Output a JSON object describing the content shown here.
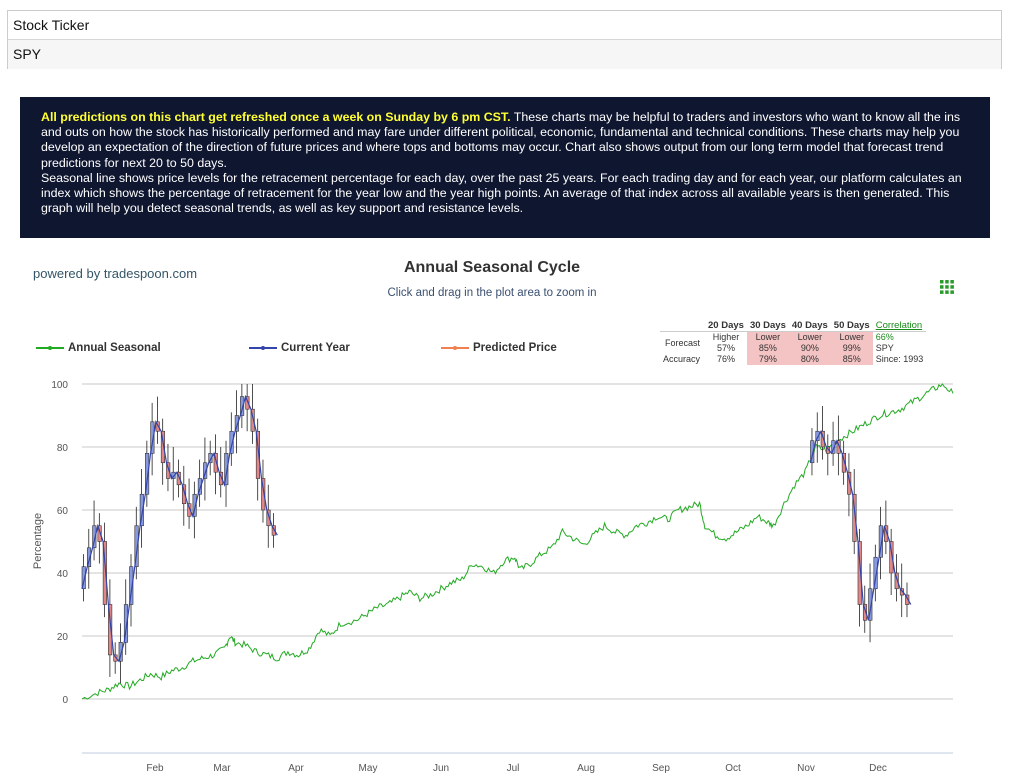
{
  "ticker": {
    "label": "Stock Ticker",
    "value": "SPY"
  },
  "info": {
    "highlight": "All predictions on this chart get refreshed once a week on Sunday by 6 pm CST.",
    "text1": " These charts may be helpful to traders and investors who want to know all the ins and outs on how the stock has historically performed and may fare under different political, economic, fundamental and technical conditions. These charts may help you develop an expectation of the direction of future prices and where tops and bottoms may occur. Chart also shows output from our long term model that forecast trend predictions for next 20 to 50 days.",
    "text2": "Seasonal line shows price levels for the retracement percentage for each day, over the past 25 years. For each trading day and for each year, our platform calculates an index which shows the percentage of retracement for the year low and the year high points. An average of that index across all available years is then generated. This graph will help you detect seasonal trends, as well as key support and resistance levels."
  },
  "powered_by": "powered by tradespoon.com",
  "menu_icon": "hamburger-grid-icon",
  "forecast_table": {
    "headers": [
      "20 Days",
      "30 Days",
      "40 Days",
      "50 Days"
    ],
    "correlation_link": "Correlation",
    "forecast_label": "Forecast",
    "accuracy_label": "Accuracy",
    "directions": [
      "Higher",
      "Lower",
      "Lower",
      "Lower"
    ],
    "forecast_pct": [
      "57%",
      "85%",
      "90%",
      "99%"
    ],
    "accuracy": [
      "76%",
      "79%",
      "80%",
      "85%"
    ],
    "correlation_value": "66%",
    "correlation_symbol": "SPY",
    "since": "Since: 1993"
  },
  "chart_data": {
    "type": "line",
    "title": "Annual Seasonal Cycle",
    "subtitle": "Click and drag in the plot area to zoom in",
    "ylabel": "Percentage",
    "xlabel": "",
    "ylim": [
      0,
      100
    ],
    "yticks": [
      0,
      20,
      40,
      60,
      80,
      100
    ],
    "xticks": [
      "Feb",
      "Mar",
      "Apr",
      "May",
      "Jun",
      "Jul",
      "Aug",
      "Sep",
      "Oct",
      "Nov",
      "Dec"
    ],
    "grid": true,
    "legend_position": "top-left",
    "colors": {
      "seasonal": "#22aa22",
      "current": "#3344aa",
      "predicted": "#f08050",
      "up_candle": "#8899dd",
      "down_candle": "#e08888"
    },
    "series": [
      {
        "name": "Annual Seasonal",
        "points": [
          [
            0,
            0
          ],
          [
            6,
            2
          ],
          [
            10,
            3
          ],
          [
            14,
            5
          ],
          [
            18,
            4
          ],
          [
            22,
            6
          ],
          [
            26,
            8
          ],
          [
            30,
            7
          ],
          [
            34,
            9
          ],
          [
            38,
            10
          ],
          [
            42,
            12
          ],
          [
            46,
            13
          ],
          [
            50,
            14
          ],
          [
            54,
            16
          ],
          [
            56,
            20
          ],
          [
            58,
            18
          ],
          [
            62,
            17
          ],
          [
            66,
            15
          ],
          [
            70,
            14
          ],
          [
            74,
            13
          ],
          [
            78,
            15
          ],
          [
            82,
            14
          ],
          [
            86,
            16
          ],
          [
            90,
            22
          ],
          [
            94,
            20
          ],
          [
            98,
            24
          ],
          [
            104,
            25
          ],
          [
            108,
            27
          ],
          [
            112,
            29
          ],
          [
            116,
            30
          ],
          [
            120,
            32
          ],
          [
            124,
            34
          ],
          [
            128,
            32
          ],
          [
            132,
            33
          ],
          [
            136,
            35
          ],
          [
            140,
            37
          ],
          [
            144,
            38
          ],
          [
            148,
            43
          ],
          [
            152,
            42
          ],
          [
            156,
            40
          ],
          [
            160,
            44
          ],
          [
            164,
            45
          ],
          [
            166,
            41
          ],
          [
            170,
            43
          ],
          [
            174,
            46
          ],
          [
            178,
            48
          ],
          [
            182,
            53
          ],
          [
            186,
            51
          ],
          [
            190,
            49
          ],
          [
            194,
            52
          ],
          [
            198,
            55
          ],
          [
            202,
            53
          ],
          [
            206,
            52
          ],
          [
            210,
            55
          ],
          [
            214,
            56
          ],
          [
            218,
            58
          ],
          [
            222,
            57
          ],
          [
            226,
            60
          ],
          [
            230,
            61
          ],
          [
            234,
            62
          ],
          [
            236,
            55
          ],
          [
            240,
            52
          ],
          [
            244,
            51
          ],
          [
            248,
            53
          ],
          [
            252,
            55
          ],
          [
            256,
            58
          ],
          [
            260,
            56
          ],
          [
            262,
            55
          ],
          [
            266,
            62
          ],
          [
            270,
            68
          ],
          [
            274,
            72
          ],
          [
            278,
            80
          ],
          [
            282,
            79
          ],
          [
            286,
            82
          ],
          [
            290,
            84
          ],
          [
            294,
            86
          ],
          [
            298,
            88
          ],
          [
            302,
            90
          ],
          [
            306,
            91
          ],
          [
            310,
            92
          ],
          [
            314,
            94
          ],
          [
            318,
            96
          ],
          [
            322,
            98
          ],
          [
            326,
            100
          ],
          [
            330,
            97
          ]
        ]
      },
      {
        "name": "Current Year",
        "segments": [
          [
            [
              0,
              35
            ],
            [
              2,
              42
            ],
            [
              4,
              48
            ],
            [
              6,
              55
            ],
            [
              8,
              50
            ],
            [
              10,
              30
            ],
            [
              12,
              14
            ],
            [
              14,
              12
            ],
            [
              16,
              18
            ],
            [
              18,
              30
            ],
            [
              20,
              42
            ],
            [
              22,
              55
            ],
            [
              24,
              65
            ],
            [
              26,
              78
            ],
            [
              28,
              88
            ],
            [
              30,
              85
            ],
            [
              32,
              75
            ],
            [
              34,
              70
            ],
            [
              36,
              72
            ],
            [
              38,
              68
            ],
            [
              40,
              62
            ],
            [
              42,
              58
            ],
            [
              44,
              65
            ],
            [
              46,
              70
            ],
            [
              48,
              75
            ],
            [
              50,
              78
            ],
            [
              52,
              72
            ],
            [
              54,
              68
            ],
            [
              56,
              78
            ],
            [
              58,
              85
            ],
            [
              60,
              90
            ],
            [
              62,
              96
            ],
            [
              64,
              92
            ],
            [
              66,
              85
            ],
            [
              68,
              70
            ],
            [
              70,
              60
            ],
            [
              72,
              55
            ],
            [
              74,
              52
            ]
          ],
          [
            [
              276,
              75
            ],
            [
              278,
              82
            ],
            [
              280,
              85
            ],
            [
              282,
              80
            ],
            [
              284,
              78
            ],
            [
              286,
              82
            ],
            [
              288,
              78
            ],
            [
              290,
              72
            ],
            [
              292,
              65
            ],
            [
              294,
              50
            ],
            [
              296,
              30
            ],
            [
              298,
              25
            ],
            [
              300,
              35
            ],
            [
              302,
              45
            ],
            [
              304,
              55
            ],
            [
              306,
              50
            ],
            [
              308,
              40
            ],
            [
              310,
              35
            ],
            [
              312,
              33
            ],
            [
              314,
              30
            ]
          ]
        ]
      },
      {
        "name": "Predicted Price",
        "points": []
      }
    ]
  }
}
